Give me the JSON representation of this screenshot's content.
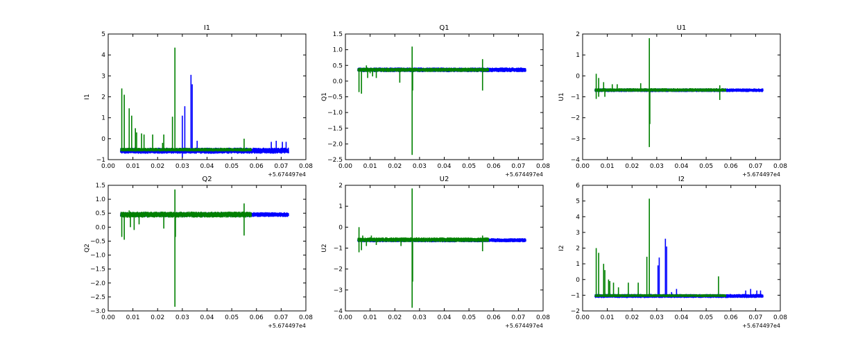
{
  "colors": {
    "series_blue": "#0000ff",
    "series_green": "#008000",
    "axes": "#000000",
    "background": "#ffffff"
  },
  "chart_data": [
    {
      "type": "line",
      "title": "I1",
      "ylabel": "I1",
      "xlabel": "",
      "xlim": [
        0.0,
        0.08
      ],
      "ylim": [
        -1,
        5
      ],
      "x_offset_label": "+5.674497e4",
      "xticks": [
        "0.00",
        "0.01",
        "0.02",
        "0.03",
        "0.04",
        "0.05",
        "0.06",
        "0.07",
        "0.08"
      ],
      "yticks": [
        "−1",
        "0",
        "1",
        "2",
        "3",
        "4",
        "5"
      ],
      "grid": false,
      "series": [
        {
          "color": "blue",
          "band": [
            -0.7,
            -0.45
          ],
          "x_range": [
            0.005,
            0.073
          ],
          "spikes": [
            [
              0.03,
              -0.9
            ],
            [
              0.03,
              1.1
            ],
            [
              0.031,
              1.55
            ],
            [
              0.0335,
              3.05
            ],
            [
              0.034,
              2.6
            ],
            [
              0.036,
              -0.1
            ],
            [
              0.066,
              -0.15
            ],
            [
              0.068,
              -0.1
            ],
            [
              0.0705,
              -0.15
            ],
            [
              0.072,
              -0.15
            ]
          ]
        },
        {
          "color": "green",
          "band": [
            -0.6,
            -0.45
          ],
          "x_range": [
            0.005,
            0.058
          ],
          "spikes": [
            [
              0.0055,
              2.4
            ],
            [
              0.0065,
              2.1
            ],
            [
              0.0085,
              1.45
            ],
            [
              0.0095,
              1.1
            ],
            [
              0.011,
              0.5
            ],
            [
              0.0115,
              0.3
            ],
            [
              0.0135,
              0.25
            ],
            [
              0.0145,
              0.2
            ],
            [
              0.018,
              0.2
            ],
            [
              0.022,
              -0.2
            ],
            [
              0.0225,
              0.2
            ],
            [
              0.026,
              1.05
            ],
            [
              0.027,
              4.35
            ],
            [
              0.055,
              0.0
            ]
          ]
        }
      ]
    },
    {
      "type": "line",
      "title": "Q1",
      "ylabel": "Q1",
      "xlabel": "",
      "xlim": [
        0.0,
        0.08
      ],
      "ylim": [
        -2.5,
        1.5
      ],
      "x_offset_label": "+5.674497e4",
      "xticks": [
        "0.00",
        "0.01",
        "0.02",
        "0.03",
        "0.04",
        "0.05",
        "0.06",
        "0.07",
        "0.08"
      ],
      "yticks": [
        "−2.5",
        "−2.0",
        "−1.5",
        "−1.0",
        "−0.5",
        "0.0",
        "0.5",
        "1.0",
        "1.5"
      ],
      "grid": false,
      "series": [
        {
          "color": "blue",
          "band": [
            0.3,
            0.42
          ],
          "x_range": [
            0.005,
            0.073
          ],
          "spikes": []
        },
        {
          "color": "green",
          "band": [
            0.3,
            0.42
          ],
          "x_range": [
            0.005,
            0.058
          ],
          "spikes": [
            [
              0.0055,
              -0.35
            ],
            [
              0.0065,
              -0.4
            ],
            [
              0.0085,
              0.5
            ],
            [
              0.009,
              0.1
            ],
            [
              0.01,
              0.25
            ],
            [
              0.011,
              0.15
            ],
            [
              0.0125,
              0.1
            ],
            [
              0.022,
              -0.05
            ],
            [
              0.027,
              1.1
            ],
            [
              0.027,
              -2.35
            ],
            [
              0.0272,
              -0.3
            ],
            [
              0.0555,
              0.7
            ],
            [
              0.0555,
              -0.3
            ]
          ]
        }
      ]
    },
    {
      "type": "line",
      "title": "U1",
      "ylabel": "U1",
      "xlabel": "",
      "xlim": [
        0.0,
        0.08
      ],
      "ylim": [
        -4,
        2
      ],
      "x_offset_label": "+5.674497e4",
      "xticks": [
        "0.00",
        "0.01",
        "0.02",
        "0.03",
        "0.04",
        "0.05",
        "0.06",
        "0.07",
        "0.08"
      ],
      "yticks": [
        "−4",
        "−3",
        "−2",
        "−1",
        "0",
        "1",
        "2"
      ],
      "grid": false,
      "series": [
        {
          "color": "blue",
          "band": [
            -0.75,
            -0.62
          ],
          "x_range": [
            0.005,
            0.073
          ],
          "spikes": []
        },
        {
          "color": "green",
          "band": [
            -0.75,
            -0.6
          ],
          "x_range": [
            0.005,
            0.058
          ],
          "spikes": [
            [
              0.0055,
              0.1
            ],
            [
              0.0055,
              -1.1
            ],
            [
              0.0065,
              -1.0
            ],
            [
              0.0065,
              -0.1
            ],
            [
              0.0085,
              -0.3
            ],
            [
              0.009,
              -1.0
            ],
            [
              0.012,
              -0.4
            ],
            [
              0.014,
              -0.4
            ],
            [
              0.0235,
              -0.35
            ],
            [
              0.027,
              1.8
            ],
            [
              0.027,
              -3.4
            ],
            [
              0.0272,
              -2.3
            ],
            [
              0.0555,
              -0.45
            ],
            [
              0.0555,
              -1.15
            ]
          ]
        }
      ]
    },
    {
      "type": "line",
      "title": "Q2",
      "ylabel": "Q2",
      "xlabel": "",
      "xlim": [
        0.0,
        0.08
      ],
      "ylim": [
        -3.0,
        1.5
      ],
      "x_offset_label": "+5.674497e4",
      "xticks": [
        "0.00",
        "0.01",
        "0.02",
        "0.03",
        "0.04",
        "0.05",
        "0.06",
        "0.07",
        "0.08"
      ],
      "yticks": [
        "−3.0",
        "−2.5",
        "−2.0",
        "−1.5",
        "−1.0",
        "−0.5",
        "0.0",
        "0.5",
        "1.0",
        "1.5"
      ],
      "grid": false,
      "series": [
        {
          "color": "blue",
          "band": [
            0.38,
            0.52
          ],
          "x_range": [
            0.005,
            0.073
          ],
          "spikes": []
        },
        {
          "color": "green",
          "band": [
            0.35,
            0.55
          ],
          "x_range": [
            0.005,
            0.058
          ],
          "spikes": [
            [
              0.0055,
              -0.35
            ],
            [
              0.0065,
              -0.45
            ],
            [
              0.0085,
              0.6
            ],
            [
              0.009,
              0.0
            ],
            [
              0.0105,
              -0.1
            ],
            [
              0.0125,
              0.1
            ],
            [
              0.0225,
              -0.05
            ],
            [
              0.027,
              1.35
            ],
            [
              0.027,
              -2.85
            ],
            [
              0.0272,
              -0.35
            ],
            [
              0.055,
              0.85
            ],
            [
              0.055,
              -0.3
            ]
          ]
        }
      ]
    },
    {
      "type": "line",
      "title": "U2",
      "ylabel": "U2",
      "xlabel": "",
      "xlim": [
        0.0,
        0.08
      ],
      "ylim": [
        -4,
        2
      ],
      "x_offset_label": "+5.674497e4",
      "xticks": [
        "0.00",
        "0.01",
        "0.02",
        "0.03",
        "0.04",
        "0.05",
        "0.06",
        "0.07",
        "0.08"
      ],
      "yticks": [
        "−4",
        "−3",
        "−2",
        "−1",
        "0",
        "1",
        "2"
      ],
      "grid": false,
      "series": [
        {
          "color": "blue",
          "band": [
            -0.7,
            -0.55
          ],
          "x_range": [
            0.005,
            0.073
          ],
          "spikes": []
        },
        {
          "color": "green",
          "band": [
            -0.7,
            -0.5
          ],
          "x_range": [
            0.005,
            0.058
          ],
          "spikes": [
            [
              0.0055,
              0.0
            ],
            [
              0.0055,
              -1.2
            ],
            [
              0.0065,
              -1.1
            ],
            [
              0.007,
              -0.4
            ],
            [
              0.0085,
              -0.9
            ],
            [
              0.0105,
              -0.4
            ],
            [
              0.0125,
              -0.85
            ],
            [
              0.0225,
              -0.9
            ],
            [
              0.027,
              1.85
            ],
            [
              0.027,
              -3.85
            ],
            [
              0.0272,
              -2.6
            ],
            [
              0.0555,
              -0.4
            ],
            [
              0.0555,
              -1.15
            ]
          ]
        }
      ]
    },
    {
      "type": "line",
      "title": "I2",
      "ylabel": "I2",
      "xlabel": "",
      "xlim": [
        0.0,
        0.08
      ],
      "ylim": [
        -2,
        6
      ],
      "x_offset_label": "+5.674497e4",
      "xticks": [
        "0.00",
        "0.01",
        "0.02",
        "0.03",
        "0.04",
        "0.05",
        "0.06",
        "0.07",
        "0.08"
      ],
      "yticks": [
        "−2",
        "−1",
        "0",
        "1",
        "2",
        "3",
        "4",
        "5",
        "6"
      ],
      "grid": false,
      "series": [
        {
          "color": "blue",
          "band": [
            -1.15,
            -0.95
          ],
          "x_range": [
            0.005,
            0.073
          ],
          "spikes": [
            [
              0.0305,
              0.9
            ],
            [
              0.031,
              1.4
            ],
            [
              0.0335,
              2.6
            ],
            [
              0.034,
              2.1
            ],
            [
              0.036,
              -0.8
            ],
            [
              0.038,
              -0.6
            ],
            [
              0.066,
              -0.7
            ],
            [
              0.068,
              -0.6
            ],
            [
              0.0705,
              -0.7
            ],
            [
              0.072,
              -0.7
            ]
          ]
        },
        {
          "color": "green",
          "band": [
            -1.1,
            -0.95
          ],
          "x_range": [
            0.005,
            0.058
          ],
          "spikes": [
            [
              0.0055,
              2.0
            ],
            [
              0.0065,
              1.7
            ],
            [
              0.0085,
              1.0
            ],
            [
              0.009,
              0.6
            ],
            [
              0.0105,
              0.0
            ],
            [
              0.011,
              -0.1
            ],
            [
              0.0125,
              -0.2
            ],
            [
              0.0145,
              -0.5
            ],
            [
              0.0185,
              -0.2
            ],
            [
              0.0225,
              -0.2
            ],
            [
              0.026,
              1.45
            ],
            [
              0.027,
              5.15
            ],
            [
              0.055,
              0.2
            ]
          ]
        }
      ]
    }
  ]
}
